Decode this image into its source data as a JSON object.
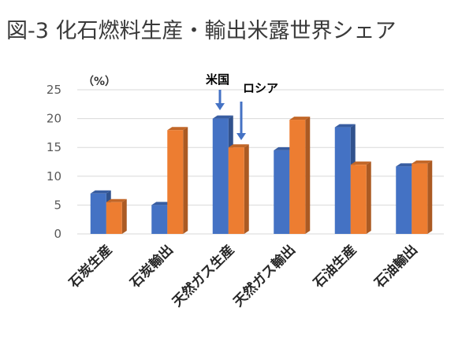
{
  "chart_data": {
    "type": "bar",
    "title": "図-3 化石燃料生産・輸出米露世界シェア",
    "ylabel": "（%）",
    "ylim": [
      0,
      25
    ],
    "yticks": [
      0,
      5,
      10,
      15,
      20,
      25
    ],
    "grid": true,
    "categories": [
      "石炭生産",
      "石炭輸出",
      "天然ガス生産",
      "天然ガス輸出",
      "石油生産",
      "石油輸出"
    ],
    "series": [
      {
        "name": "米国",
        "color": "#4472c4",
        "values": [
          7,
          5,
          20,
          14.5,
          18.5,
          11.7
        ]
      },
      {
        "name": "ロシア",
        "color": "#ed7d31",
        "values": [
          5.5,
          18,
          15,
          19.8,
          12,
          12.2
        ]
      }
    ],
    "annotations": [
      {
        "text": "米国",
        "target_series": 0,
        "target_category": 2
      },
      {
        "text": "ロシア",
        "target_series": 1,
        "target_category": 2
      }
    ]
  }
}
